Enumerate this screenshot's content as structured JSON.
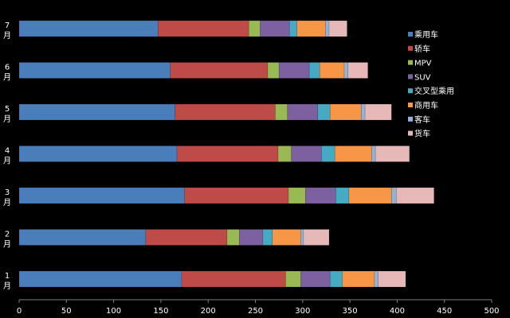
{
  "chart_data": {
    "type": "bar",
    "orientation": "horizontal",
    "stacked": true,
    "title": "",
    "xlabel": "",
    "ylabel": "",
    "xlim": [
      0,
      500
    ],
    "x_ticks": [
      0,
      50,
      100,
      150,
      200,
      250,
      300,
      350,
      400,
      450,
      500
    ],
    "grid": false,
    "legend_position": "right",
    "categories": [
      {
        "line1": "7",
        "line2": "月"
      },
      {
        "line1": "6",
        "line2": "月"
      },
      {
        "line1": "5",
        "line2": "月"
      },
      {
        "line1": "4",
        "line2": "月"
      },
      {
        "line1": "3",
        "line2": "月"
      },
      {
        "line1": "2",
        "line2": "月"
      },
      {
        "line1": "1",
        "line2": "月"
      }
    ],
    "series": [
      {
        "name": "乘用车",
        "color": "#4a7ebb",
        "values": [
          147,
          160,
          165,
          167,
          175,
          134,
          172
        ],
        "segment": true
      },
      {
        "name": "轿车",
        "color": "#be4b48",
        "values": [
          96,
          103,
          106,
          107,
          110,
          86,
          110
        ],
        "segment": true
      },
      {
        "name": "MPV",
        "color": "#98b954",
        "values": [
          12,
          12,
          13,
          14,
          18,
          13,
          16
        ],
        "segment": true
      },
      {
        "name": "SUV",
        "color": "#7d60a0",
        "values": [
          31,
          32,
          32,
          32,
          32,
          25,
          31
        ],
        "segment": true
      },
      {
        "name": "交叉型乘用",
        "color": "#46aac5",
        "values": [
          8,
          11,
          13,
          14,
          14,
          10,
          13
        ],
        "segment": true
      },
      {
        "name": "商用车",
        "color": "#f79646",
        "values": [
          30,
          26,
          33,
          39,
          45,
          30,
          34
        ],
        "segment": true
      },
      {
        "name": "客车",
        "color": "#95b3d7",
        "values": [
          4,
          4,
          4,
          4,
          5,
          3,
          4
        ],
        "segment": true
      },
      {
        "name": "货车",
        "color": "#e6b9b8",
        "values": [
          19,
          21,
          28,
          36,
          40,
          27,
          29
        ],
        "segment": true
      }
    ]
  }
}
